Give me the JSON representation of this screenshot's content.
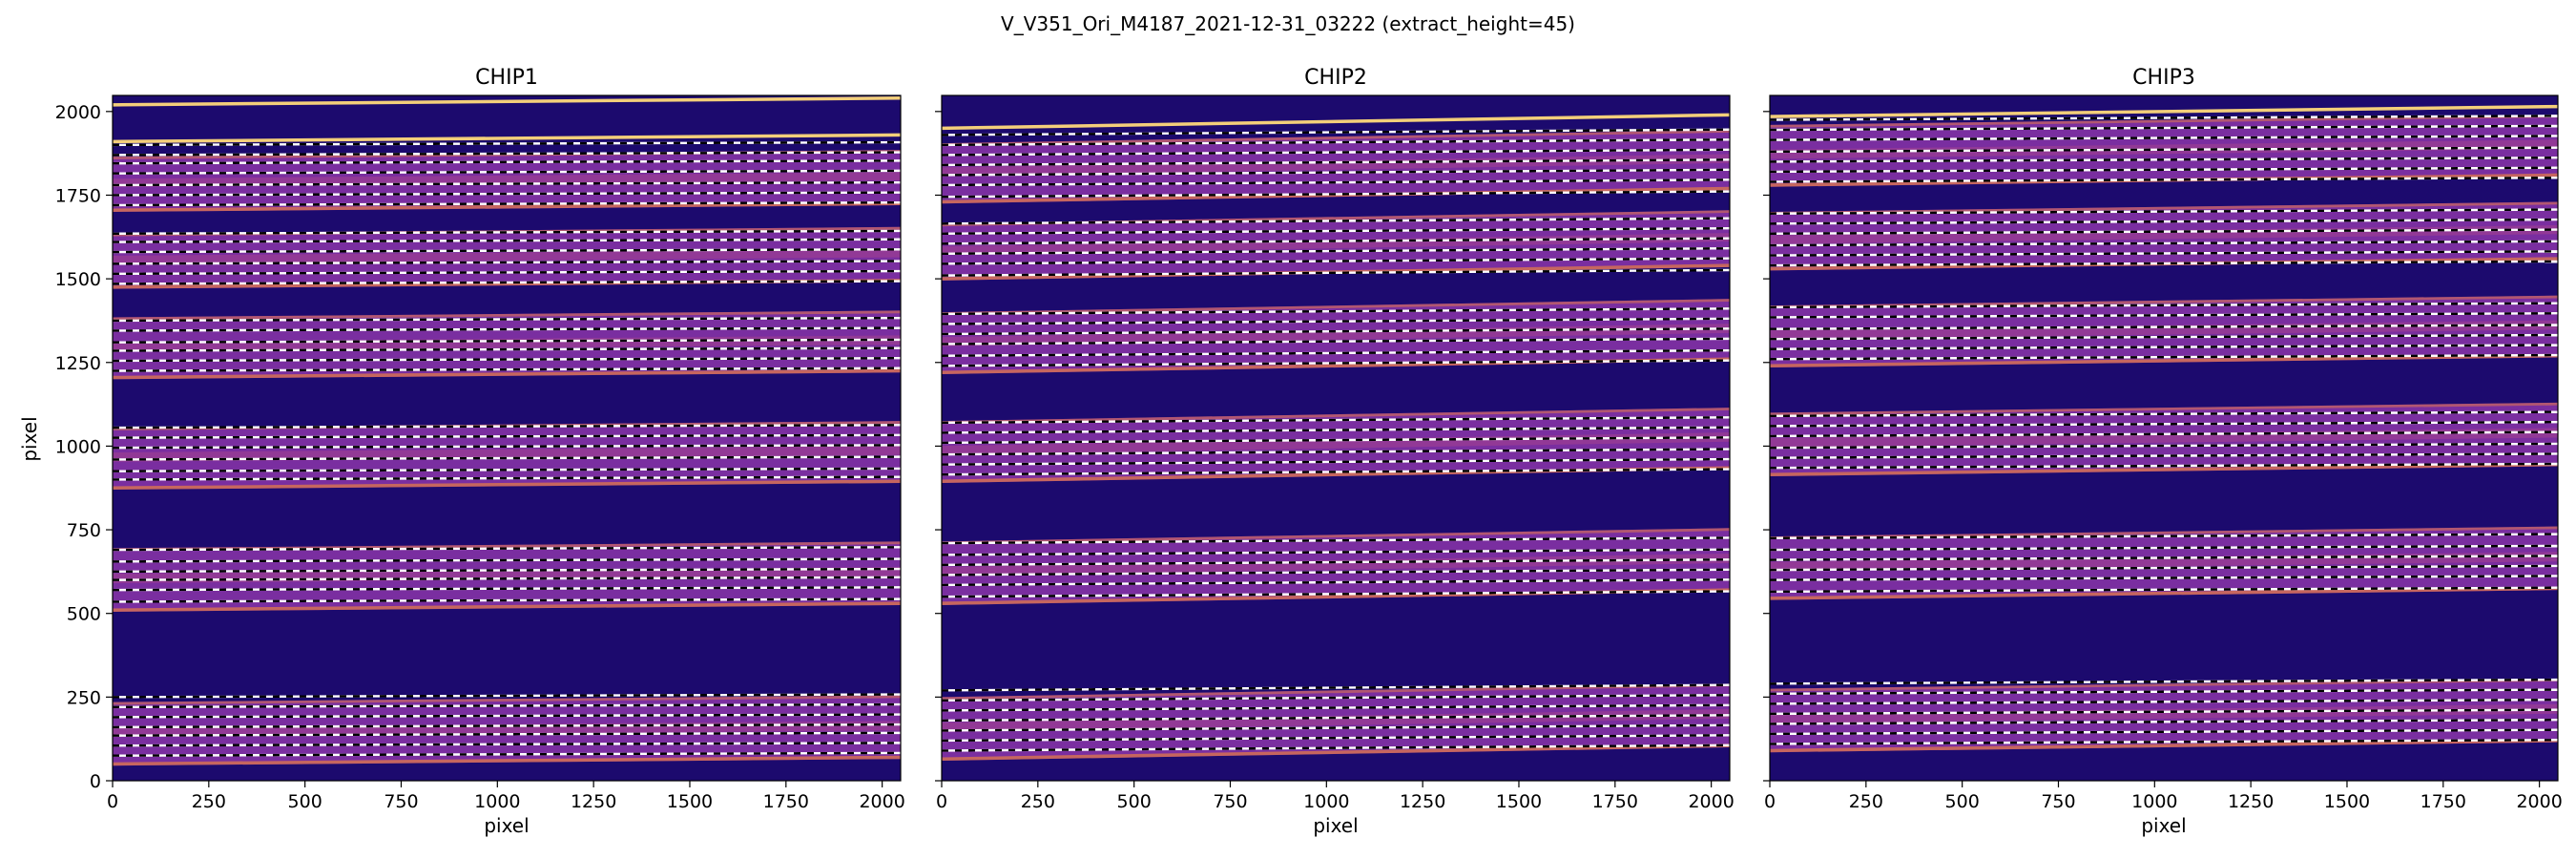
{
  "figure": {
    "suptitle": "V_V351_Ori_M4187_2021-12-31_03222  (extract_height=45)"
  },
  "colors": {
    "background": "#1c0a6e",
    "background_dark": "#12065a",
    "order_band": "#7a2ea0",
    "order_band_bright": "#b0478a",
    "order_edge": "#e07a4a",
    "bright_line": "#f3cf7a",
    "trace_line": "#ffffff",
    "trace_dash": "#000000"
  },
  "chart_data": [
    {
      "type": "heatmap",
      "title": "CHIP1",
      "xlabel": "pixel",
      "ylabel": "pixel",
      "xlim": [
        0,
        2048
      ],
      "ylim": [
        0,
        2048
      ],
      "xticks": [
        "0",
        "250",
        "500",
        "750",
        "1000",
        "1250",
        "1500",
        "1750",
        "2000"
      ],
      "yticks": [
        "0",
        "250",
        "500",
        "750",
        "1000",
        "1250",
        "1500",
        "1750",
        "2000"
      ],
      "tilt": 20,
      "orders": [
        [
          45,
          235
        ],
        [
          505,
          695
        ],
        [
          870,
          1055
        ],
        [
          1200,
          1385
        ],
        [
          1470,
          1635
        ],
        [
          1700,
          1865
        ]
      ],
      "bright_lines": [
        1910,
        2020
      ],
      "traces": [
        75,
        105,
        135,
        160,
        190,
        220,
        250,
        535,
        570,
        600,
        625,
        655,
        690,
        900,
        925,
        960,
        995,
        1025,
        1055,
        1225,
        1255,
        1285,
        1310,
        1345,
        1375,
        1485,
        1515,
        1545,
        1580,
        1610,
        1635,
        1720,
        1750,
        1780,
        1815,
        1845,
        1870,
        1900
      ]
    },
    {
      "type": "heatmap",
      "title": "CHIP2",
      "xlabel": "pixel",
      "ylabel": "",
      "xlim": [
        0,
        2048
      ],
      "ylim": [
        0,
        2048
      ],
      "xticks": [
        "0",
        "250",
        "500",
        "750",
        "1000",
        "1250",
        "1500",
        "1750",
        "2000"
      ],
      "yticks": [],
      "tilt": 40,
      "orders": [
        [
          60,
          250
        ],
        [
          525,
          715
        ],
        [
          890,
          1075
        ],
        [
          1215,
          1400
        ],
        [
          1495,
          1665
        ],
        [
          1725,
          1905
        ]
      ],
      "bright_lines": [
        1950
      ],
      "traces": [
        90,
        120,
        150,
        180,
        210,
        240,
        270,
        550,
        585,
        615,
        645,
        675,
        710,
        915,
        945,
        975,
        1010,
        1040,
        1070,
        1240,
        1270,
        1305,
        1335,
        1365,
        1395,
        1510,
        1545,
        1575,
        1605,
        1635,
        1665,
        1745,
        1780,
        1810,
        1840,
        1870,
        1900,
        1930
      ]
    },
    {
      "type": "heatmap",
      "title": "CHIP3",
      "xlabel": "pixel",
      "ylabel": "",
      "xlim": [
        0,
        2048
      ],
      "ylim": [
        0,
        2048
      ],
      "xticks": [
        "0",
        "250",
        "500",
        "750",
        "1000",
        "1250",
        "1500",
        "1750",
        "2000"
      ],
      "yticks": [],
      "tilt": 30,
      "orders": [
        [
          85,
          275
        ],
        [
          540,
          730
        ],
        [
          910,
          1100
        ],
        [
          1235,
          1420
        ],
        [
          1525,
          1700
        ],
        [
          1775,
          1960
        ]
      ],
      "bright_lines": [
        1985
      ],
      "traces": [
        110,
        140,
        170,
        200,
        230,
        260,
        290,
        565,
        600,
        630,
        660,
        690,
        725,
        935,
        965,
        995,
        1030,
        1060,
        1090,
        1260,
        1290,
        1320,
        1350,
        1385,
        1415,
        1540,
        1570,
        1600,
        1635,
        1665,
        1695,
        1790,
        1820,
        1850,
        1880,
        1915,
        1945,
        1975
      ]
    }
  ]
}
